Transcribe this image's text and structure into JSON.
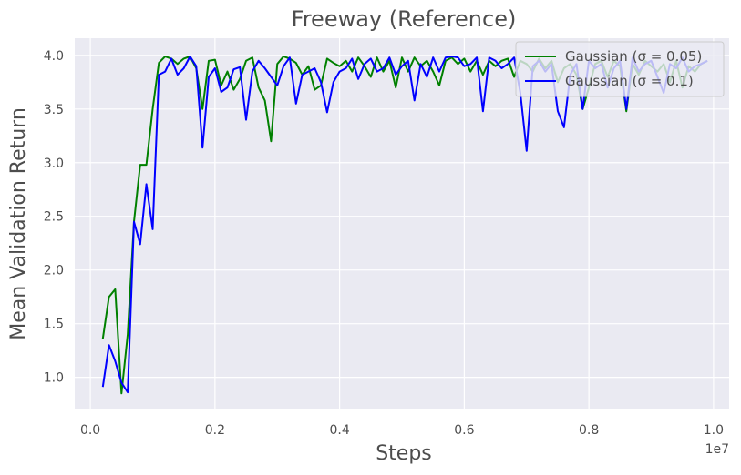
{
  "chart_data": {
    "type": "line",
    "title": "Freeway (Reference)",
    "xlabel": "Steps",
    "ylabel": "Mean Validation Return",
    "x_offset_label": "1e7",
    "xlim": [
      -0.025,
      1.025
    ],
    "ylim": [
      0.7,
      4.16
    ],
    "xticks": [
      0.0,
      0.2,
      0.4,
      0.6,
      0.8,
      1.0
    ],
    "xtick_labels": [
      "0.0",
      "0.2",
      "0.4",
      "0.6",
      "0.8",
      "1.0"
    ],
    "yticks": [
      1.0,
      1.5,
      2.0,
      2.5,
      3.0,
      3.5,
      4.0
    ],
    "ytick_labels": [
      "1.0",
      "1.5",
      "2.0",
      "2.5",
      "3.0",
      "3.5",
      "4.0"
    ],
    "grid": true,
    "background": "#eaeaf2",
    "legend_position": "top-right",
    "series": [
      {
        "name": "Gaussian (σ = 0.05)",
        "color": "#008000",
        "x": [
          0.02,
          0.03,
          0.04,
          0.05,
          0.06,
          0.07,
          0.08,
          0.09,
          0.1,
          0.11,
          0.12,
          0.13,
          0.14,
          0.15,
          0.16,
          0.17,
          0.18,
          0.19,
          0.2,
          0.21,
          0.22,
          0.23,
          0.24,
          0.25,
          0.26,
          0.27,
          0.28,
          0.29,
          0.3,
          0.31,
          0.32,
          0.33,
          0.34,
          0.35,
          0.36,
          0.37,
          0.38,
          0.39,
          0.4,
          0.41,
          0.42,
          0.43,
          0.44,
          0.45,
          0.46,
          0.47,
          0.48,
          0.49,
          0.5,
          0.51,
          0.52,
          0.53,
          0.54,
          0.55,
          0.56,
          0.57,
          0.58,
          0.59,
          0.6,
          0.61,
          0.62,
          0.63,
          0.64,
          0.65,
          0.66,
          0.67,
          0.68,
          0.69,
          0.7,
          0.71,
          0.72,
          0.73,
          0.74,
          0.75,
          0.76,
          0.77,
          0.78,
          0.79,
          0.8,
          0.81,
          0.82,
          0.83,
          0.84,
          0.85,
          0.86,
          0.87,
          0.88,
          0.89,
          0.9,
          0.91,
          0.92,
          0.93,
          0.94,
          0.95,
          0.96,
          0.97,
          0.98,
          0.99
        ],
        "values": [
          1.36,
          1.75,
          1.82,
          0.85,
          1.4,
          2.45,
          2.98,
          2.98,
          3.5,
          3.93,
          3.99,
          3.97,
          3.92,
          3.97,
          3.99,
          3.88,
          3.5,
          3.95,
          3.96,
          3.72,
          3.85,
          3.68,
          3.78,
          3.95,
          3.98,
          3.7,
          3.58,
          3.2,
          3.92,
          3.99,
          3.97,
          3.93,
          3.82,
          3.9,
          3.68,
          3.72,
          3.97,
          3.93,
          3.9,
          3.95,
          3.85,
          3.98,
          3.9,
          3.8,
          3.98,
          3.85,
          3.95,
          3.7,
          3.98,
          3.85,
          3.98,
          3.9,
          3.95,
          3.85,
          3.72,
          3.95,
          3.98,
          3.92,
          3.97,
          3.85,
          3.95,
          3.82,
          3.95,
          3.9,
          3.95,
          3.97,
          3.8,
          3.95,
          3.92,
          3.85,
          3.97,
          3.88,
          3.95,
          3.75,
          3.88,
          3.92,
          3.82,
          3.5,
          3.7,
          3.92,
          3.95,
          3.8,
          3.95,
          3.9,
          3.48,
          3.92,
          3.82,
          3.95,
          3.9,
          3.85,
          3.92,
          3.75,
          3.95,
          3.7,
          3.9,
          3.85,
          3.92,
          3.95
        ]
      },
      {
        "name": "Gaussian (σ = 0.1)",
        "color": "#0000ff",
        "x": [
          0.02,
          0.03,
          0.04,
          0.05,
          0.06,
          0.07,
          0.08,
          0.09,
          0.1,
          0.11,
          0.12,
          0.13,
          0.14,
          0.15,
          0.16,
          0.17,
          0.18,
          0.19,
          0.2,
          0.21,
          0.22,
          0.23,
          0.24,
          0.25,
          0.26,
          0.27,
          0.28,
          0.29,
          0.3,
          0.31,
          0.32,
          0.33,
          0.34,
          0.35,
          0.36,
          0.37,
          0.38,
          0.39,
          0.4,
          0.41,
          0.42,
          0.43,
          0.44,
          0.45,
          0.46,
          0.47,
          0.48,
          0.49,
          0.5,
          0.51,
          0.52,
          0.53,
          0.54,
          0.55,
          0.56,
          0.57,
          0.58,
          0.59,
          0.6,
          0.61,
          0.62,
          0.63,
          0.64,
          0.65,
          0.66,
          0.67,
          0.68,
          0.69,
          0.7,
          0.71,
          0.72,
          0.73,
          0.74,
          0.75,
          0.76,
          0.77,
          0.78,
          0.79,
          0.8,
          0.81,
          0.82,
          0.83,
          0.84,
          0.85,
          0.86,
          0.87,
          0.88,
          0.89,
          0.9,
          0.91,
          0.92,
          0.93,
          0.94,
          0.95,
          0.96,
          0.97,
          0.98,
          0.99
        ],
        "values": [
          0.91,
          1.3,
          1.15,
          0.95,
          0.86,
          2.45,
          2.24,
          2.8,
          2.38,
          3.82,
          3.85,
          3.97,
          3.82,
          3.88,
          3.99,
          3.9,
          3.14,
          3.8,
          3.88,
          3.66,
          3.7,
          3.87,
          3.89,
          3.4,
          3.85,
          3.95,
          3.88,
          3.8,
          3.72,
          3.9,
          3.98,
          3.55,
          3.82,
          3.85,
          3.88,
          3.75,
          3.47,
          3.75,
          3.85,
          3.88,
          3.97,
          3.78,
          3.92,
          3.97,
          3.85,
          3.88,
          3.98,
          3.82,
          3.9,
          3.95,
          3.58,
          3.92,
          3.8,
          3.98,
          3.85,
          3.98,
          3.99,
          3.98,
          3.9,
          3.92,
          3.98,
          3.48,
          3.98,
          3.95,
          3.88,
          3.92,
          3.98,
          3.65,
          3.11,
          3.9,
          3.95,
          3.85,
          3.92,
          3.48,
          3.33,
          3.82,
          3.92,
          3.5,
          3.95,
          3.88,
          3.92,
          3.7,
          3.88,
          3.95,
          3.5,
          3.98,
          3.85,
          3.92,
          3.95,
          3.8,
          3.65,
          3.92,
          3.88,
          3.98,
          3.85,
          3.9,
          3.92,
          3.95
        ]
      }
    ]
  }
}
